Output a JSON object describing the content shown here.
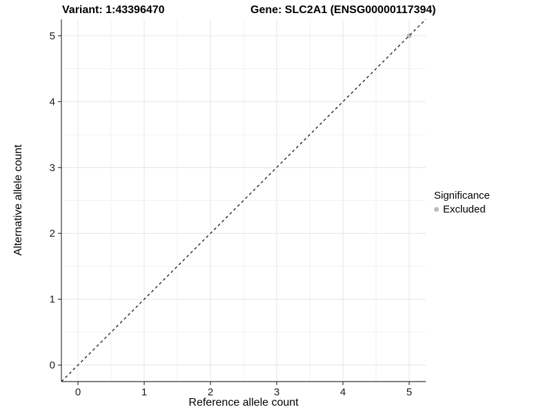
{
  "titles": {
    "variant": "Variant: 1:43396470",
    "gene": "Gene: SLC2A1 (ENSG00000117394)"
  },
  "chart_data": {
    "type": "scatter",
    "title": "Variant: 1:43396470 | Gene: SLC2A1 (ENSG00000117394)",
    "xlabel": "Reference allele count",
    "ylabel": "Alternative allele count",
    "xlim": [
      -0.25,
      5.25
    ],
    "ylim": [
      -0.25,
      5.25
    ],
    "x_ticks": [
      0,
      1,
      2,
      3,
      4,
      5
    ],
    "y_ticks": [
      0,
      1,
      2,
      3,
      4,
      5
    ],
    "x_minor_ticks": [
      0.5,
      1.5,
      2.5,
      3.5,
      4.5
    ],
    "y_minor_ticks": [
      0.5,
      1.5,
      2.5,
      3.5,
      4.5
    ],
    "grid": true,
    "legend_position": "right",
    "legend": {
      "title": "Significance",
      "items": [
        {
          "label": "Excluded",
          "color": "#bcbcbc"
        }
      ]
    },
    "series": [
      {
        "name": "Excluded",
        "color": "#bcbcbc",
        "points": [
          {
            "x": 5,
            "y": 5
          }
        ]
      }
    ],
    "reference_line": {
      "type": "identity",
      "slope": 1,
      "intercept": 0,
      "style": "dashed",
      "color": "#000000"
    },
    "colors": {
      "background": "#ffffff",
      "grid_major": "#e4e4e4",
      "grid_minor": "#f1f1f1",
      "axis_line": "#333333",
      "tick_text": "#1a1a1a",
      "point": "#bcbcbc"
    }
  }
}
